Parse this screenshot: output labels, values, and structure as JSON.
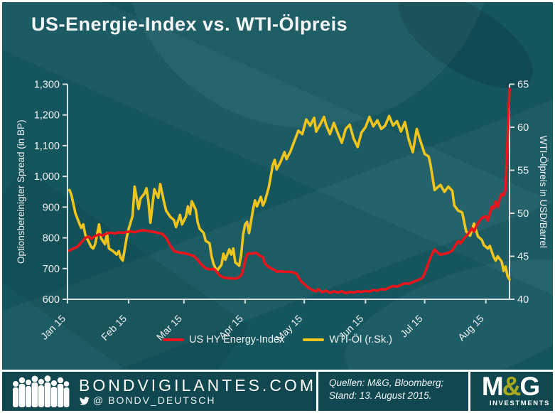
{
  "title": "US-Energie-Index vs. WTI-Ölpreis",
  "colors": {
    "background": "#14555e",
    "footer_background": "#11474f",
    "axis": "#d9dfe1",
    "text": "#eef2f2",
    "red": "#e8161c",
    "yellow": "#efc41c",
    "olive": "#a8aa1f",
    "white": "#ffffff"
  },
  "chart_data": {
    "type": "line",
    "title": "US-Energie-Index vs. WTI-Ölpreis",
    "grid": false,
    "legend_position": "bottom",
    "x_axis": {
      "labels": [
        "Jan 15",
        "Feb 15",
        "Mar 15",
        "Apr 15",
        "May 15",
        "Jun 15",
        "Jul 15",
        "Aug 15"
      ],
      "month_start_days": [
        0,
        31,
        59,
        90,
        120,
        151,
        181,
        212
      ],
      "domain_days": [
        0,
        224
      ]
    },
    "y_left": {
      "label": "Optionsbereinigter Spread (in BP)",
      "min": 600,
      "max": 1300,
      "tick_values": [
        600,
        700,
        800,
        900,
        1000,
        1100,
        1200,
        1300
      ],
      "tick_labels": [
        "600",
        "700",
        "800",
        "900",
        "1,000",
        "1,100",
        "1,200",
        "1,300"
      ]
    },
    "y_right": {
      "label": "WTI-Ölpreis  in USD/Barrel",
      "min": 40,
      "max": 65,
      "tick_values": [
        40,
        45,
        50,
        55,
        60,
        65
      ],
      "tick_labels": [
        "40",
        "45",
        "50",
        "55",
        "60",
        "65"
      ]
    },
    "series": [
      {
        "name": "WTI-Öl (r.Sk.)",
        "axis": "right",
        "color": "#efc41c",
        "unit": "USD/Barrel",
        "points": [
          [
            1,
            52.7
          ],
          [
            2,
            52.1
          ],
          [
            4,
            50.0
          ],
          [
            6,
            48.8
          ],
          [
            7,
            48.3
          ],
          [
            8,
            48.7
          ],
          [
            9,
            47.5
          ],
          [
            12,
            46.1
          ],
          [
            13,
            45.9
          ],
          [
            14,
            46.4
          ],
          [
            16,
            48.7
          ],
          [
            17,
            47.1
          ],
          [
            19,
            46.4
          ],
          [
            20,
            47.7
          ],
          [
            21,
            45.9
          ],
          [
            23,
            45.6
          ],
          [
            25,
            45.2
          ],
          [
            26,
            45.6
          ],
          [
            27,
            44.8
          ],
          [
            28,
            44.5
          ],
          [
            30,
            47.2
          ],
          [
            31,
            48.2
          ],
          [
            33,
            49.7
          ],
          [
            34,
            53.1
          ],
          [
            35,
            51.8
          ],
          [
            36,
            50.5
          ],
          [
            37,
            51.7
          ],
          [
            39,
            52.3
          ],
          [
            40,
            52.9
          ],
          [
            41,
            51.4
          ],
          [
            42,
            48.9
          ],
          [
            44,
            52.8
          ],
          [
            45,
            52.3
          ],
          [
            46,
            51.8
          ],
          [
            47,
            53.4
          ],
          [
            49,
            51.2
          ],
          [
            50,
            50.3
          ],
          [
            52,
            49.6
          ],
          [
            54,
            49.2
          ],
          [
            55,
            48.4
          ],
          [
            57,
            49.8
          ],
          [
            58,
            48.7
          ],
          [
            60,
            49.6
          ],
          [
            61,
            50.8
          ],
          [
            62,
            49.9
          ],
          [
            63,
            51.4
          ],
          [
            65,
            50.4
          ],
          [
            66,
            48.9
          ],
          [
            67,
            48.2
          ],
          [
            69,
            47.7
          ],
          [
            70,
            46.8
          ],
          [
            72,
            46.5
          ],
          [
            73,
            45.0
          ],
          [
            74,
            44.1
          ],
          [
            75,
            43.6
          ],
          [
            76,
            43.4
          ],
          [
            78,
            44.0
          ],
          [
            79,
            45.3
          ],
          [
            80,
            44.6
          ],
          [
            82,
            45.8
          ],
          [
            83,
            45.2
          ],
          [
            84,
            45.9
          ],
          [
            85,
            44.3
          ],
          [
            86,
            44.1
          ],
          [
            87,
            43.9
          ],
          [
            88,
            45.2
          ],
          [
            89,
            47.5
          ],
          [
            90,
            48.7
          ],
          [
            91,
            49.0
          ],
          [
            92,
            47.7
          ],
          [
            94,
            50.4
          ],
          [
            95,
            51.5
          ],
          [
            96,
            50.8
          ],
          [
            98,
            51.9
          ],
          [
            99,
            50.9
          ],
          [
            100,
            51.4
          ],
          [
            102,
            53.0
          ],
          [
            103,
            54.3
          ],
          [
            104,
            55.6
          ],
          [
            105,
            56.2
          ],
          [
            106,
            55.1
          ],
          [
            108,
            56.0
          ],
          [
            110,
            57.1
          ],
          [
            111,
            56.3
          ],
          [
            113,
            57.2
          ],
          [
            115,
            58.4
          ],
          [
            117,
            59.6
          ],
          [
            119,
            59.2
          ],
          [
            121,
            60.9
          ],
          [
            123,
            60.2
          ],
          [
            125,
            61.1
          ],
          [
            126,
            59.5
          ],
          [
            128,
            60.3
          ],
          [
            130,
            61.2
          ],
          [
            131,
            60.3
          ],
          [
            133,
            59.2
          ],
          [
            135,
            60.5
          ],
          [
            137,
            59.3
          ],
          [
            139,
            58.2
          ],
          [
            141,
            59.8
          ],
          [
            143,
            60.3
          ],
          [
            145,
            58.7
          ],
          [
            147,
            57.7
          ],
          [
            149,
            59.4
          ],
          [
            151,
            60.0
          ],
          [
            153,
            61.2
          ],
          [
            155,
            60.1
          ],
          [
            157,
            60.8
          ],
          [
            159,
            59.8
          ],
          [
            161,
            60.2
          ],
          [
            163,
            61.3
          ],
          [
            165,
            60.2
          ],
          [
            167,
            60.7
          ],
          [
            169,
            59.5
          ],
          [
            171,
            60.6
          ],
          [
            173,
            58.5
          ],
          [
            175,
            57.1
          ],
          [
            177,
            59.8
          ],
          [
            179,
            58.3
          ],
          [
            181,
            56.9
          ],
          [
            183,
            56.6
          ],
          [
            184,
            55.6
          ],
          [
            186,
            52.7
          ],
          [
            187,
            52.9
          ],
          [
            189,
            53.3
          ],
          [
            191,
            52.5
          ],
          [
            193,
            53.1
          ],
          [
            195,
            52.6
          ],
          [
            196,
            50.9
          ],
          [
            198,
            50.3
          ],
          [
            200,
            50.1
          ],
          [
            202,
            47.9
          ],
          [
            204,
            47.4
          ],
          [
            206,
            48.8
          ],
          [
            208,
            47.3
          ],
          [
            210,
            46.9
          ],
          [
            211,
            46.3
          ],
          [
            213,
            45.9
          ],
          [
            214,
            46.2
          ],
          [
            216,
            44.9
          ],
          [
            217,
            44.5
          ],
          [
            218,
            45.0
          ],
          [
            220,
            44.4
          ],
          [
            221,
            43.3
          ],
          [
            222,
            43.8
          ],
          [
            223,
            42.7
          ],
          [
            224,
            42.3
          ]
        ]
      },
      {
        "name": "US HY Energy-Index",
        "axis": "left",
        "color": "#e8161c",
        "unit": "BP",
        "points": [
          [
            1,
            758
          ],
          [
            2,
            762
          ],
          [
            3,
            765
          ],
          [
            5,
            771
          ],
          [
            7,
            785
          ],
          [
            9,
            800
          ],
          [
            11,
            804
          ],
          [
            12,
            797
          ],
          [
            14,
            806
          ],
          [
            16,
            811
          ],
          [
            18,
            808
          ],
          [
            20,
            814
          ],
          [
            22,
            817
          ],
          [
            24,
            814
          ],
          [
            26,
            818
          ],
          [
            28,
            816
          ],
          [
            30,
            819
          ],
          [
            32,
            821
          ],
          [
            34,
            818
          ],
          [
            36,
            822
          ],
          [
            38,
            825
          ],
          [
            40,
            823
          ],
          [
            42,
            821
          ],
          [
            44,
            819
          ],
          [
            46,
            816
          ],
          [
            48,
            813
          ],
          [
            50,
            800
          ],
          [
            52,
            776
          ],
          [
            54,
            757
          ],
          [
            56,
            753
          ],
          [
            58,
            751
          ],
          [
            60,
            749
          ],
          [
            62,
            745
          ],
          [
            64,
            741
          ],
          [
            66,
            728
          ],
          [
            68,
            712
          ],
          [
            70,
            701
          ],
          [
            72,
            697
          ],
          [
            74,
            699
          ],
          [
            75,
            694
          ],
          [
            77,
            678
          ],
          [
            79,
            671
          ],
          [
            81,
            669
          ],
          [
            83,
            668
          ],
          [
            85,
            667
          ],
          [
            87,
            672
          ],
          [
            88,
            678
          ],
          [
            89,
            695
          ],
          [
            90,
            725
          ],
          [
            91,
            746
          ],
          [
            92,
            750
          ],
          [
            93,
            748
          ],
          [
            95,
            751
          ],
          [
            96,
            749
          ],
          [
            97,
            744
          ],
          [
            99,
            737
          ],
          [
            100,
            718
          ],
          [
            101,
            710
          ],
          [
            103,
            701
          ],
          [
            105,
            695
          ],
          [
            106,
            690
          ],
          [
            108,
            691
          ],
          [
            110,
            689
          ],
          [
            112,
            690
          ],
          [
            114,
            688
          ],
          [
            116,
            684
          ],
          [
            118,
            661
          ],
          [
            120,
            649
          ],
          [
            122,
            638
          ],
          [
            124,
            630
          ],
          [
            126,
            626
          ],
          [
            127,
            633
          ],
          [
            129,
            623
          ],
          [
            131,
            628
          ],
          [
            133,
            621
          ],
          [
            135,
            626
          ],
          [
            137,
            622
          ],
          [
            139,
            626
          ],
          [
            141,
            620
          ],
          [
            143,
            624
          ],
          [
            145,
            622
          ],
          [
            147,
            626
          ],
          [
            149,
            624
          ],
          [
            151,
            627
          ],
          [
            153,
            625
          ],
          [
            155,
            630
          ],
          [
            157,
            628
          ],
          [
            159,
            633
          ],
          [
            161,
            631
          ],
          [
            163,
            638
          ],
          [
            165,
            643
          ],
          [
            167,
            641
          ],
          [
            169,
            647
          ],
          [
            171,
            652
          ],
          [
            173,
            650
          ],
          [
            175,
            656
          ],
          [
            177,
            661
          ],
          [
            179,
            666
          ],
          [
            180,
            671
          ],
          [
            181,
            684
          ],
          [
            182,
            701
          ],
          [
            183,
            720
          ],
          [
            184,
            736
          ],
          [
            185,
            750
          ],
          [
            186,
            762
          ],
          [
            187,
            755
          ],
          [
            188,
            750
          ],
          [
            189,
            745
          ],
          [
            191,
            748
          ],
          [
            193,
            751
          ],
          [
            195,
            758
          ],
          [
            196,
            770
          ],
          [
            197,
            780
          ],
          [
            198,
            789
          ],
          [
            199,
            781
          ],
          [
            200,
            790
          ],
          [
            201,
            798
          ],
          [
            203,
            813
          ],
          [
            205,
            831
          ],
          [
            206,
            820
          ],
          [
            207,
            835
          ],
          [
            208,
            848
          ],
          [
            210,
            865
          ],
          [
            212,
            870
          ],
          [
            213,
            856
          ],
          [
            214,
            878
          ],
          [
            215,
            901
          ],
          [
            216,
            896
          ],
          [
            217,
            918
          ],
          [
            218,
            900
          ],
          [
            219,
            925
          ],
          [
            220,
            943
          ],
          [
            221,
            938
          ],
          [
            222,
            957
          ],
          [
            223,
            1120
          ],
          [
            224,
            1285
          ]
        ]
      }
    ]
  },
  "legend": {
    "items": [
      {
        "label": "US HY Energy-Index",
        "color": "#e8161c"
      },
      {
        "label": "WTI-Öl (r.Sk.)",
        "color": "#efc41c"
      }
    ]
  },
  "footer": {
    "brand": "BONDVIGILANTES.COM",
    "twitter_at": "@",
    "twitter_handle": "BONDV_DEUTSCH",
    "source": "Quellen: M&G, Bloomberg; Stand: 13. August 2015.",
    "logo": {
      "m": "M",
      "amp": "&",
      "g": "G",
      "sub": "INVESTMENTS"
    }
  }
}
